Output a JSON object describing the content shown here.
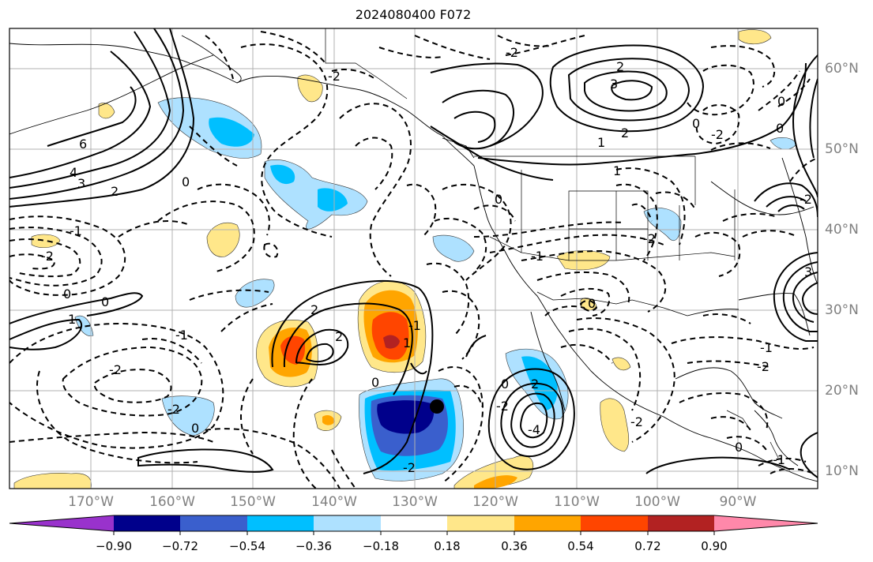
{
  "title": "2024080400 F072",
  "map": {
    "lon_labels": [
      "170°W",
      "160°W",
      "150°W",
      "140°W",
      "130°W",
      "120°W",
      "110°W",
      "100°W",
      "90°W"
    ],
    "lat_labels": [
      "60°N",
      "50°N",
      "40°N",
      "30°N",
      "20°N",
      "10°N"
    ],
    "contour_labels": [
      "6",
      "4",
      "3",
      "2",
      "0",
      "-1",
      "-2",
      "0",
      "1",
      "0",
      "-1",
      "-2",
      "-2",
      "0",
      "2",
      "2",
      "-1",
      "1",
      "0",
      "-2",
      "-2",
      "3",
      "2",
      "1",
      "2",
      "0",
      "-2",
      "0",
      "1",
      "0",
      "-1",
      "-2",
      "0",
      "-2",
      "2",
      "-4",
      "0",
      "-1",
      "-2",
      "-2",
      "0",
      "0",
      "-1",
      "3",
      "-2",
      "-2"
    ],
    "marker": "filled-circle"
  },
  "colorbar": {
    "tick_labels": [
      "−0.90",
      "−0.72",
      "−0.54",
      "−0.36",
      "−0.18",
      "0.18",
      "0.36",
      "0.54",
      "0.72",
      "0.90"
    ],
    "colors": [
      "#9932cc",
      "#00008b",
      "#3a5fcd",
      "#00bfff",
      "#aee1ff",
      "#ffffff",
      "#ffe78a",
      "#ffa500",
      "#ff4500",
      "#b22222",
      "#ff88aa"
    ]
  }
}
